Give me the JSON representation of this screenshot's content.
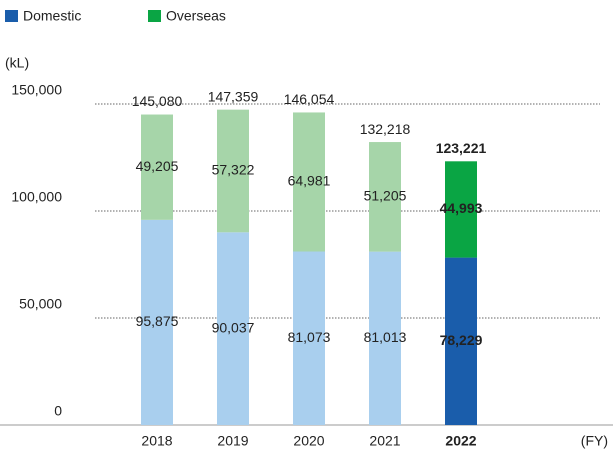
{
  "chart_data": {
    "type": "stacked_bar",
    "categories": [
      "2018",
      "2019",
      "2020",
      "2021",
      "2022"
    ],
    "highlight_index": 4,
    "series": [
      {
        "name": "Domestic",
        "color": "#a9cfee",
        "highlight_color": "#1a5dab",
        "values": [
          95875,
          90037,
          81073,
          81013,
          78229
        ],
        "value_labels": [
          "95,875",
          "90,037",
          "81,073",
          "81,013",
          "78,229"
        ]
      },
      {
        "name": "Overseas",
        "color": "#a6d5a9",
        "highlight_color": "#0aa544",
        "values": [
          49205,
          57322,
          64981,
          51205,
          44993
        ],
        "value_labels": [
          "49,205",
          "57,322",
          "64,981",
          "51,205",
          "44,993"
        ]
      }
    ],
    "totals": [
      145080,
      147359,
      146054,
      132218,
      123221
    ],
    "total_labels": [
      "145,080",
      "147,359",
      "146,054",
      "132,218",
      "123,221"
    ],
    "y_label": "(kL)",
    "x_label": "(FY)",
    "ylim": [
      0,
      150000
    ],
    "yticks": [
      0,
      {
        "value": 50000,
        "label": "50,000"
      },
      {
        "value": 100000,
        "label": "100,000"
      },
      {
        "value": 150000,
        "label": "150,000"
      }
    ],
    "grid": true
  }
}
